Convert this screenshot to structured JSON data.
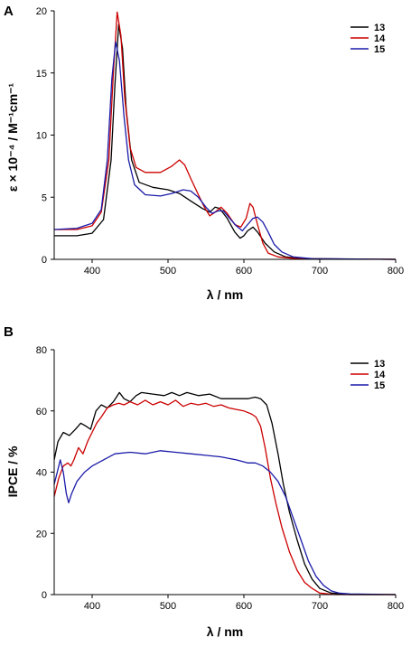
{
  "chart_data": [
    {
      "type": "line",
      "panel_label": "A",
      "xlabel": "λ / nm",
      "ylabel": "ε × 10⁻⁴ / M⁻¹cm⁻¹",
      "xlim": [
        350,
        800
      ],
      "ylim": [
        0,
        20
      ],
      "xticks": [
        400,
        500,
        600,
        700,
        800
      ],
      "yticks": [
        0,
        5,
        10,
        15,
        20
      ],
      "grid": false,
      "legend_position": "top-right",
      "series": [
        {
          "name": "13",
          "color": "#000000",
          "points": [
            [
              350,
              1.9
            ],
            [
              380,
              1.9
            ],
            [
              400,
              2.1
            ],
            [
              415,
              3.2
            ],
            [
              425,
              8
            ],
            [
              430,
              14
            ],
            [
              435,
              18.9
            ],
            [
              440,
              17
            ],
            [
              445,
              12
            ],
            [
              452,
              8
            ],
            [
              462,
              6.2
            ],
            [
              480,
              5.8
            ],
            [
              500,
              5.6
            ],
            [
              515,
              5.3
            ],
            [
              530,
              4.7
            ],
            [
              545,
              4.1
            ],
            [
              555,
              3.8
            ],
            [
              562,
              4.2
            ],
            [
              568,
              4.1
            ],
            [
              578,
              3.3
            ],
            [
              588,
              2.2
            ],
            [
              595,
              1.7
            ],
            [
              600,
              1.9
            ],
            [
              605,
              2.3
            ],
            [
              612,
              2.6
            ],
            [
              618,
              2.2
            ],
            [
              628,
              1.3
            ],
            [
              640,
              0.6
            ],
            [
              655,
              0.2
            ],
            [
              680,
              0.05
            ],
            [
              800,
              0
            ]
          ]
        },
        {
          "name": "14",
          "color": "#cc0000",
          "points": [
            [
              350,
              2.4
            ],
            [
              380,
              2.4
            ],
            [
              400,
              2.7
            ],
            [
              412,
              3.8
            ],
            [
              422,
              8
            ],
            [
              428,
              15
            ],
            [
              433,
              19.9
            ],
            [
              438,
              18
            ],
            [
              443,
              13
            ],
            [
              450,
              9
            ],
            [
              458,
              7.4
            ],
            [
              470,
              7
            ],
            [
              490,
              7
            ],
            [
              505,
              7.5
            ],
            [
              515,
              8
            ],
            [
              522,
              7.6
            ],
            [
              530,
              6.5
            ],
            [
              540,
              5.2
            ],
            [
              548,
              4.2
            ],
            [
              555,
              3.5
            ],
            [
              562,
              3.8
            ],
            [
              570,
              4.2
            ],
            [
              578,
              3.7
            ],
            [
              588,
              2.8
            ],
            [
              596,
              2.6
            ],
            [
              603,
              3.3
            ],
            [
              608,
              4.5
            ],
            [
              612,
              4.2
            ],
            [
              618,
              2.8
            ],
            [
              625,
              1.3
            ],
            [
              632,
              0.5
            ],
            [
              645,
              0.2
            ],
            [
              670,
              0.05
            ],
            [
              800,
              0
            ]
          ]
        },
        {
          "name": "15",
          "color": "#1a1aa8",
          "points": [
            [
              350,
              2.4
            ],
            [
              380,
              2.5
            ],
            [
              400,
              2.9
            ],
            [
              412,
              4
            ],
            [
              420,
              8
            ],
            [
              426,
              14.5
            ],
            [
              431,
              17.5
            ],
            [
              436,
              16
            ],
            [
              442,
              11.5
            ],
            [
              448,
              8
            ],
            [
              456,
              6
            ],
            [
              470,
              5.2
            ],
            [
              490,
              5.1
            ],
            [
              505,
              5.3
            ],
            [
              520,
              5.6
            ],
            [
              530,
              5.5
            ],
            [
              540,
              5
            ],
            [
              550,
              4.2
            ],
            [
              558,
              3.7
            ],
            [
              566,
              3.9
            ],
            [
              573,
              3.9
            ],
            [
              580,
              3.4
            ],
            [
              590,
              2.7
            ],
            [
              598,
              2.3
            ],
            [
              605,
              2.8
            ],
            [
              612,
              3.3
            ],
            [
              618,
              3.4
            ],
            [
              625,
              3
            ],
            [
              632,
              2.2
            ],
            [
              640,
              1.2
            ],
            [
              650,
              0.6
            ],
            [
              665,
              0.2
            ],
            [
              690,
              0.05
            ],
            [
              800,
              0
            ]
          ]
        }
      ]
    },
    {
      "type": "line",
      "panel_label": "B",
      "xlabel": "λ / nm",
      "ylabel": "IPCE / %",
      "xlim": [
        350,
        800
      ],
      "ylim": [
        0,
        80
      ],
      "xticks": [
        400,
        500,
        600,
        700,
        800
      ],
      "yticks": [
        0,
        20,
        40,
        60,
        80
      ],
      "grid": false,
      "legend_position": "top-right",
      "series": [
        {
          "name": "13",
          "color": "#000000",
          "points": [
            [
              350,
              44
            ],
            [
              355,
              50
            ],
            [
              362,
              53
            ],
            [
              370,
              52
            ],
            [
              378,
              54
            ],
            [
              385,
              56
            ],
            [
              392,
              55
            ],
            [
              398,
              54
            ],
            [
              405,
              60
            ],
            [
              412,
              62
            ],
            [
              420,
              61
            ],
            [
              428,
              63
            ],
            [
              436,
              66
            ],
            [
              442,
              64
            ],
            [
              450,
              63
            ],
            [
              458,
              65
            ],
            [
              465,
              66
            ],
            [
              480,
              65.5
            ],
            [
              495,
              65
            ],
            [
              505,
              66
            ],
            [
              515,
              65
            ],
            [
              525,
              66
            ],
            [
              540,
              65
            ],
            [
              555,
              65.5
            ],
            [
              570,
              64
            ],
            [
              590,
              64
            ],
            [
              605,
              64
            ],
            [
              615,
              64.5
            ],
            [
              622,
              64
            ],
            [
              630,
              62
            ],
            [
              637,
              56
            ],
            [
              645,
              46
            ],
            [
              652,
              36
            ],
            [
              660,
              27
            ],
            [
              670,
              18
            ],
            [
              680,
              10
            ],
            [
              690,
              5
            ],
            [
              700,
              2
            ],
            [
              715,
              0.5
            ],
            [
              740,
              0
            ],
            [
              800,
              0
            ]
          ]
        },
        {
          "name": "14",
          "color": "#cc0000",
          "points": [
            [
              350,
              32
            ],
            [
              356,
              38
            ],
            [
              362,
              42
            ],
            [
              368,
              43
            ],
            [
              372,
              42
            ],
            [
              376,
              44
            ],
            [
              382,
              48
            ],
            [
              388,
              46
            ],
            [
              394,
              50
            ],
            [
              400,
              53
            ],
            [
              406,
              56
            ],
            [
              412,
              58
            ],
            [
              420,
              61
            ],
            [
              428,
              62
            ],
            [
              435,
              62.5
            ],
            [
              442,
              62
            ],
            [
              450,
              63
            ],
            [
              460,
              62
            ],
            [
              470,
              63.5
            ],
            [
              480,
              62
            ],
            [
              490,
              63
            ],
            [
              500,
              62
            ],
            [
              510,
              63.5
            ],
            [
              520,
              61.5
            ],
            [
              530,
              62.5
            ],
            [
              540,
              62
            ],
            [
              550,
              62.5
            ],
            [
              560,
              61.5
            ],
            [
              570,
              62
            ],
            [
              580,
              61
            ],
            [
              590,
              60.5
            ],
            [
              600,
              60
            ],
            [
              610,
              59
            ],
            [
              616,
              58
            ],
            [
              622,
              55
            ],
            [
              628,
              48
            ],
            [
              635,
              38
            ],
            [
              642,
              30
            ],
            [
              650,
              22
            ],
            [
              660,
              14
            ],
            [
              670,
              8
            ],
            [
              680,
              4
            ],
            [
              690,
              2
            ],
            [
              700,
              0.5
            ],
            [
              720,
              0
            ],
            [
              800,
              0
            ]
          ]
        },
        {
          "name": "15",
          "color": "#1a1aa8",
          "points": [
            [
              350,
              36
            ],
            [
              354,
              40
            ],
            [
              358,
              44
            ],
            [
              362,
              40
            ],
            [
              366,
              33
            ],
            [
              369,
              30
            ],
            [
              373,
              33
            ],
            [
              380,
              37
            ],
            [
              390,
              40
            ],
            [
              400,
              42
            ],
            [
              415,
              44
            ],
            [
              430,
              46
            ],
            [
              450,
              46.5
            ],
            [
              470,
              46
            ],
            [
              490,
              47
            ],
            [
              510,
              46.5
            ],
            [
              530,
              46
            ],
            [
              550,
              45.5
            ],
            [
              570,
              45
            ],
            [
              590,
              44
            ],
            [
              605,
              43
            ],
            [
              615,
              43
            ],
            [
              625,
              42
            ],
            [
              635,
              40
            ],
            [
              645,
              37
            ],
            [
              655,
              32
            ],
            [
              665,
              25
            ],
            [
              675,
              18
            ],
            [
              685,
              11
            ],
            [
              695,
              6
            ],
            [
              705,
              3
            ],
            [
              715,
              1.2
            ],
            [
              725,
              0.5
            ],
            [
              740,
              0.2
            ],
            [
              800,
              0
            ]
          ]
        }
      ]
    }
  ]
}
